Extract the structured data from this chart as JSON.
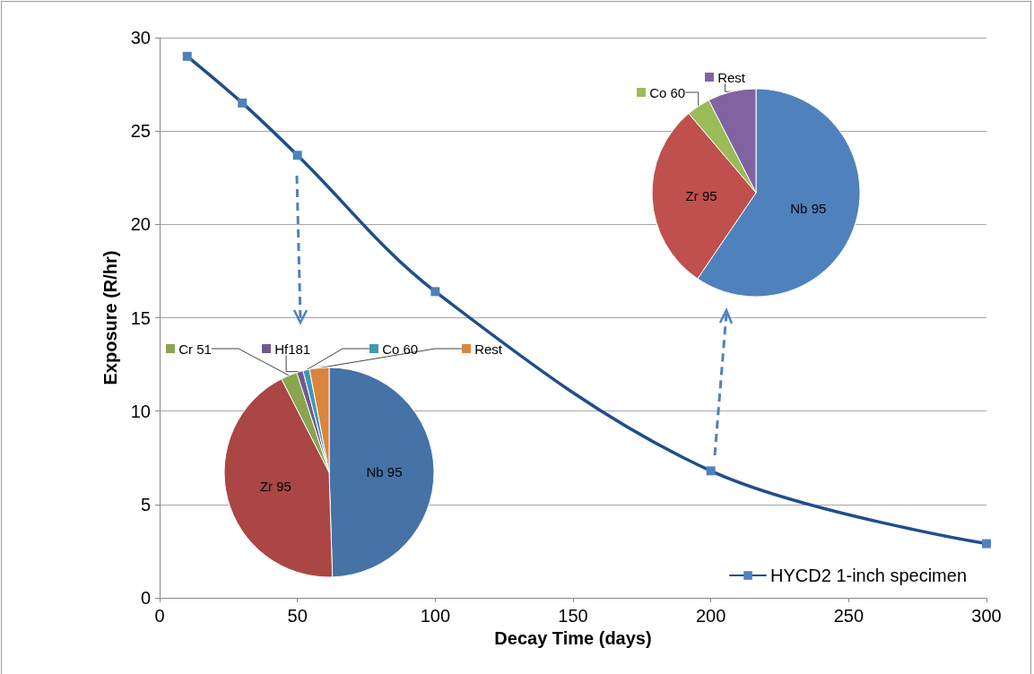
{
  "chart_data": [
    {
      "type": "line",
      "xlabel": "Decay Time (days)",
      "ylabel": "Exposure (R/hr)",
      "x": [
        10,
        30,
        50,
        100,
        200,
        300
      ],
      "series": [
        {
          "name": "HYCD2 1-inch specimen",
          "color": "#1f4e8c",
          "values": [
            29.0,
            26.5,
            23.7,
            16.4,
            6.8,
            2.9
          ]
        }
      ],
      "xlim": [
        0,
        300
      ],
      "xticks": [
        0,
        50,
        100,
        150,
        200,
        250,
        300
      ],
      "ylim": [
        0,
        30
      ],
      "yticks": [
        0,
        5,
        10,
        15,
        20,
        25,
        30
      ],
      "grid": "y",
      "legend": "bottom right",
      "marker": "square",
      "line_style": "solid"
    },
    {
      "type": "pie",
      "categories": [
        "Nb 95",
        "Zr 95",
        "Cr 51",
        "Hf181",
        "Co 60",
        "Rest"
      ],
      "values": [
        49.5,
        43,
        2.5,
        1,
        1,
        3
      ],
      "colors": [
        "#4572a7",
        "#aa4643",
        "#89a54e",
        "#71588f",
        "#4198af",
        "#db843d"
      ],
      "legend": "top"
    },
    {
      "type": "pie",
      "categories": [
        "Nb 95",
        "Zr 95",
        "Co 60",
        "Rest"
      ],
      "values": [
        59.5,
        29.3,
        3.7,
        7.5
      ],
      "colors": [
        "#4f81bd",
        "#c0504d",
        "#9bbb59",
        "#8064a2"
      ],
      "legend": "top"
    }
  ]
}
